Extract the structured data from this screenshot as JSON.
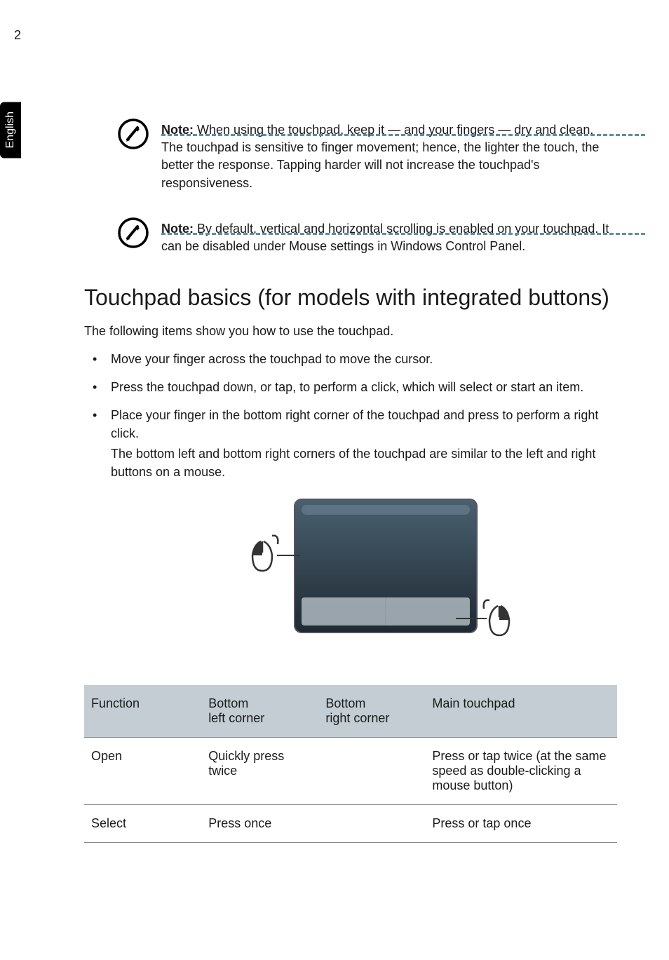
{
  "page_number": "2",
  "side_tab": "English",
  "notes": [
    {
      "label": "Note:",
      "body": " When using the touchpad, keep it — and your fingers — dry and clean. The touchpad is sensitive to finger movement; hence, the lighter the touch, the better the response. Tapping harder will not increase the touchpad's responsiveness."
    },
    {
      "label": "Note:",
      "body": " By default, vertical and horizontal scrolling is enabled on your touchpad. It can be disabled under Mouse settings in Windows Control Panel."
    }
  ],
  "heading": "Touchpad basics (for models with integrated buttons)",
  "intro": "The following items show you how to use the touchpad.",
  "bullets": [
    {
      "text": "Move your finger across the touchpad to move the cursor."
    },
    {
      "text": "Press the touchpad down, or tap, to perform a click, which will select or start an item."
    },
    {
      "text": "Place your finger in the bottom right corner of the touchpad and press to perform a right click.",
      "extra": "The bottom left and bottom right corners of the touchpad are similar to the left and right buttons on a mouse."
    }
  ],
  "table": {
    "head_bg": "#c3cdd3",
    "columns": [
      "Function",
      "Bottom\nleft corner",
      "Bottom\nright corner",
      "Main touchpad"
    ],
    "col_widths": [
      "22%",
      "22%",
      "20%",
      "36%"
    ],
    "rows": [
      [
        "Open",
        "Quickly press twice",
        "",
        "Press or tap twice (at the same speed as double-clicking a mouse button)"
      ],
      [
        "Select",
        "Press once",
        "",
        "Press or tap once"
      ]
    ]
  },
  "diagram": {
    "pad_fill_top": "#3a4d5a",
    "pad_fill_bottom": "#22303a",
    "pad_highlight": "#7a93a3",
    "btn_zone": "#b8c5cc",
    "stroke": "#6a6a6a",
    "line": "#333333"
  }
}
